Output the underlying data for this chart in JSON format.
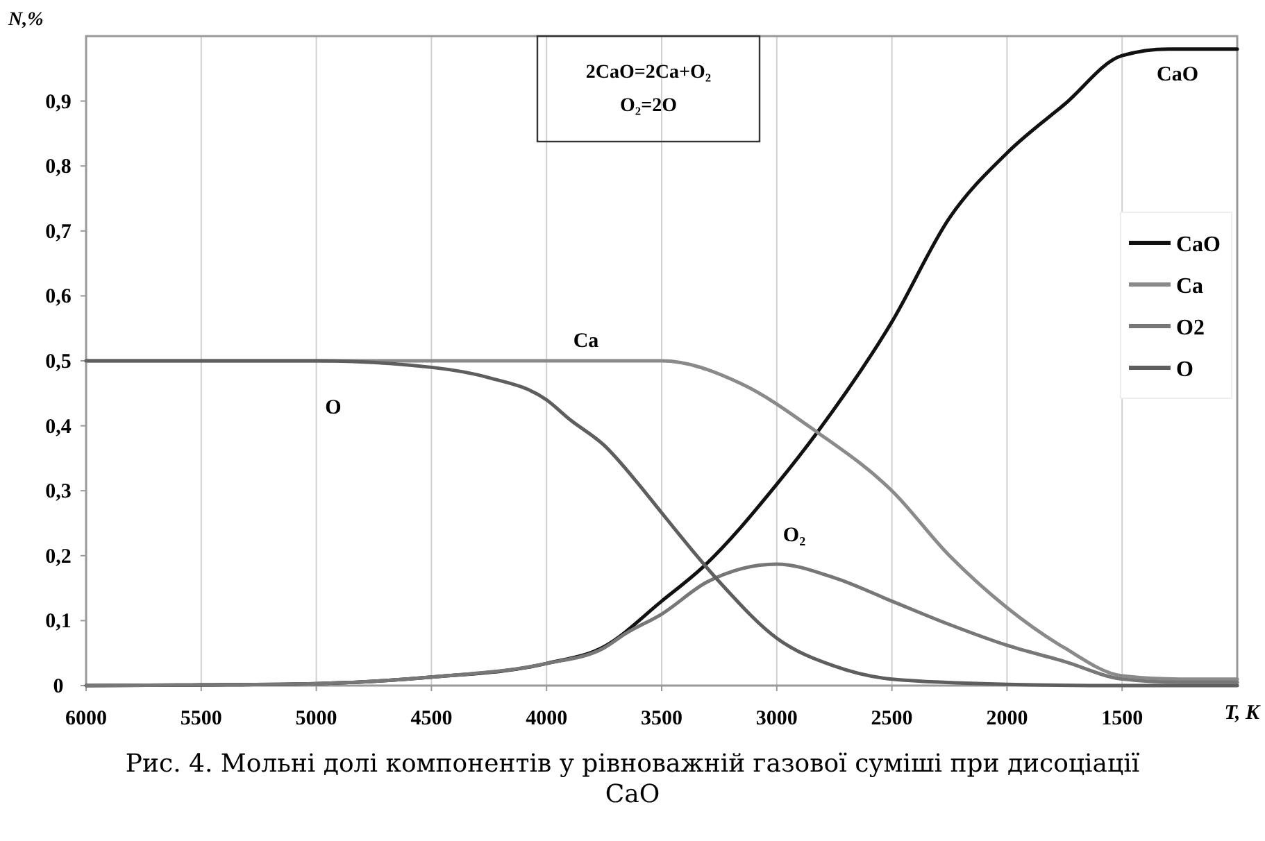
{
  "chart_data": {
    "type": "line",
    "title": "Рис. 4. Мольні долі компонентів у рівноважній газової суміші при дисоціації CaO",
    "xlabel": "T, K",
    "ylabel": "N,%",
    "annotations": [
      "2CaO=2Ca+O₂",
      "O₂=2O",
      "Ca",
      "O",
      "O₂",
      "CaO"
    ],
    "xlim": [
      6000,
      1000
    ],
    "xticks": [
      6000,
      5500,
      5000,
      4500,
      4000,
      3500,
      3000,
      2500,
      2000,
      1500
    ],
    "ylim": [
      0,
      1
    ],
    "yticks": [
      0,
      {
        "value": 0.1,
        "label": "0,1"
      },
      {
        "value": 0.2,
        "label": "0,2"
      },
      {
        "value": 0.3,
        "label": "0,3"
      },
      {
        "value": 0.4,
        "label": "0,4"
      },
      {
        "value": 0.5,
        "label": "0,5"
      },
      {
        "value": 0.6,
        "label": "0,6"
      },
      {
        "value": 0.7,
        "label": "0,7"
      },
      {
        "value": 0.8,
        "label": "0,8"
      },
      {
        "value": 0.9,
        "label": "0,9"
      }
    ],
    "grid": "x",
    "legend": "right",
    "marker": "none",
    "line_style": "solid",
    "series": [
      {
        "name": "CaO",
        "color": "#111111",
        "x": [
          6000,
          5500,
          5000,
          4500,
          4000,
          3750,
          3500,
          3313,
          3000,
          2824,
          2500,
          2250,
          2000,
          1750,
          1500,
          1300,
          1000
        ],
        "values": [
          0,
          0.001,
          0.003,
          0.013,
          0.034,
          0.06,
          0.13,
          0.185,
          0.31,
          0.39,
          0.56,
          0.72,
          0.82,
          0.895,
          0.97,
          0.98,
          0.98
        ]
      },
      {
        "name": "Ca",
        "color": "#8a8a8a",
        "x": [
          6000,
          5000,
          4000,
          3657,
          3500,
          3156,
          2824,
          2500,
          2250,
          2000,
          1750,
          1500,
          1250,
          1000
        ],
        "values": [
          0.5,
          0.5,
          0.5,
          0.5,
          0.5,
          0.465,
          0.39,
          0.3,
          0.2,
          0.12,
          0.058,
          0.015,
          0.01,
          0.01
        ]
      },
      {
        "name": "O2",
        "color": "#777777",
        "x": [
          6000,
          5500,
          5000,
          4500,
          4000,
          3750,
          3657,
          3500,
          3300,
          3000,
          2750,
          2500,
          2250,
          2000,
          1750,
          1500,
          1250,
          1000
        ],
        "values": [
          0,
          0.001,
          0.003,
          0.013,
          0.034,
          0.058,
          0.08,
          0.11,
          0.16,
          0.187,
          0.166,
          0.13,
          0.094,
          0.062,
          0.037,
          0.01,
          0.005,
          0.005
        ]
      },
      {
        "name": "O",
        "color": "#5e5e5e",
        "x": [
          6000,
          5500,
          5000,
          4500,
          4250,
          4000,
          3900,
          3750,
          3600,
          3500,
          3250,
          3000,
          2750,
          2500,
          2000,
          1500,
          1000
        ],
        "values": [
          0.5,
          0.5,
          0.5,
          0.49,
          0.474,
          0.44,
          0.41,
          0.37,
          0.31,
          0.266,
          0.16,
          0.073,
          0.03,
          0.01,
          0.002,
          0,
          0
        ]
      }
    ]
  }
}
